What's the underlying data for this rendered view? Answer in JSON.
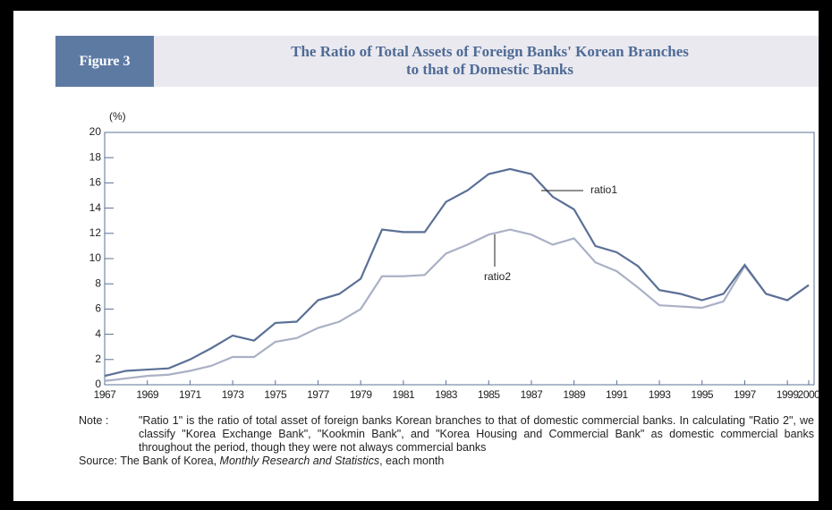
{
  "figure_label": "Figure 3",
  "chart_data": {
    "type": "line",
    "title": "The Ratio of Total Assets of Foreign Banks' Korean Branches\nto that of Domestic Banks",
    "ylabel": "(%)",
    "x": [
      1967,
      1968,
      1969,
      1970,
      1971,
      1972,
      1973,
      1974,
      1975,
      1976,
      1977,
      1978,
      1979,
      1980,
      1981,
      1982,
      1983,
      1984,
      1985,
      1986,
      1987,
      1988,
      1989,
      1990,
      1991,
      1992,
      1993,
      1994,
      1995,
      1996,
      1997,
      1998,
      1999,
      2000
    ],
    "series": [
      {
        "name": "ratio1",
        "color": "#5b7096",
        "values": [
          0.7,
          1.1,
          1.2,
          1.3,
          2.0,
          2.9,
          3.9,
          3.5,
          4.9,
          5.0,
          6.7,
          7.2,
          8.4,
          12.3,
          12.1,
          12.1,
          14.5,
          15.4,
          16.7,
          17.1,
          16.7,
          14.9,
          13.9,
          11.0,
          10.5,
          9.4,
          7.5,
          7.2,
          6.7,
          7.2,
          9.5,
          7.2,
          6.7,
          7.9
        ]
      },
      {
        "name": "ratio2",
        "color": "#aab1c6",
        "values": [
          0.3,
          0.5,
          0.7,
          0.8,
          1.1,
          1.5,
          2.2,
          2.2,
          3.4,
          3.7,
          4.5,
          5.0,
          6.0,
          8.6,
          8.6,
          8.7,
          10.4,
          11.1,
          11.9,
          12.3,
          11.9,
          11.1,
          11.6,
          9.7,
          9.0,
          7.7,
          6.3,
          6.2,
          6.1,
          6.6,
          9.4,
          7.2,
          6.7,
          7.9
        ]
      }
    ],
    "annotations": [
      {
        "text": "ratio1"
      },
      {
        "text": "ratio2"
      }
    ],
    "xlim": [
      1967,
      2000
    ],
    "xticks": [
      1967,
      1969,
      1971,
      1973,
      1975,
      1977,
      1979,
      1981,
      1983,
      1985,
      1987,
      1989,
      1991,
      1993,
      1995,
      1997,
      1999,
      2000
    ],
    "ylim": [
      0,
      20
    ],
    "yticks": [
      0,
      2,
      4,
      6,
      8,
      10,
      12,
      14,
      16,
      18,
      20
    ],
    "grid": false
  },
  "note": {
    "label": "Note :",
    "text": "\"Ratio 1\" is the ratio of total asset of foreign banks Korean branches to that of domestic commercial banks. In calculating \"Ratio 2\", we classify \"Korea Exchange Bank\", \"Kookmin Bank\", and \"Korea Housing and Commercial Bank\" as domestic commercial banks throughout the period, though they were not always commercial banks"
  },
  "source": {
    "label": "Source:",
    "publisher": "The Bank of Korea,",
    "publication": "Monthly Research and Statistics",
    "suffix": ", each month"
  }
}
